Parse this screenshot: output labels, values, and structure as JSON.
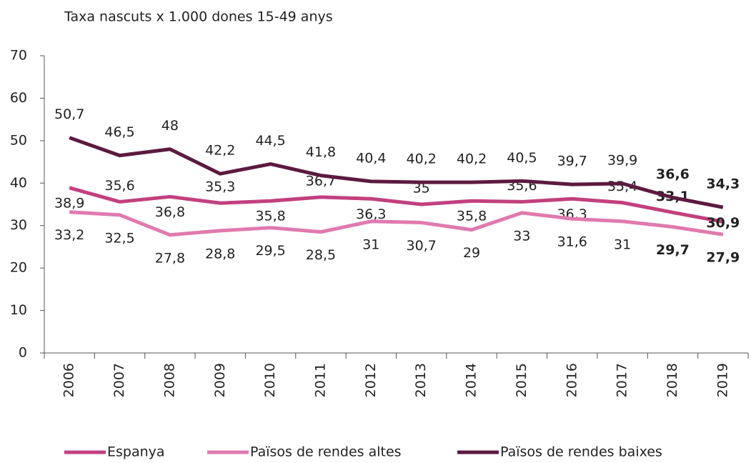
{
  "chart_data": {
    "type": "line",
    "title": "Taxa nascuts x 1.000 dones 15-49 anys",
    "categories": [
      "2006",
      "2007",
      "2008",
      "2009",
      "2010",
      "2011",
      "2012",
      "2013",
      "2014",
      "2015",
      "2016",
      "2017",
      "2018",
      "2019"
    ],
    "series": [
      {
        "name": "Espanya",
        "color": "#c2407e",
        "values": [
          38.9,
          35.6,
          36.8,
          35.3,
          35.8,
          36.7,
          36.3,
          35,
          35.8,
          35.6,
          36.3,
          35.4,
          33.1,
          30.9
        ],
        "value_labels": [
          "38,9",
          "35,6",
          "36,8",
          "35,3",
          "35,8",
          "36,7",
          "36,3",
          "35",
          "35,8",
          "35,6",
          "36,3",
          "35,4",
          "33,1",
          "30,9"
        ]
      },
      {
        "name": "Països de rendes altes",
        "color": "#e07aaf",
        "values": [
          33.2,
          32.5,
          27.8,
          28.8,
          29.5,
          28.5,
          31,
          30.7,
          29,
          33,
          31.6,
          31,
          29.7,
          27.9
        ],
        "value_labels": [
          "33,2",
          "32,5",
          "27,8",
          "28,8",
          "29,5",
          "28,5",
          "31",
          "30,7",
          "29",
          "33",
          "31,6",
          "31",
          "29,7",
          "27,9"
        ]
      },
      {
        "name": "Països de rendes baixes",
        "color": "#5c1a40",
        "values": [
          50.7,
          46.5,
          48,
          42.2,
          44.5,
          41.8,
          40.4,
          40.2,
          40.2,
          40.5,
          39.7,
          39.9,
          36.6,
          34.3
        ],
        "value_labels": [
          "50,7",
          "46,5",
          "48",
          "42,2",
          "44,5",
          "41,8",
          "40,4",
          "40,2",
          "40,2",
          "40,5",
          "39,7",
          "39,9",
          "36,6",
          "34,3"
        ]
      }
    ],
    "ylim": [
      0,
      70
    ],
    "yticks": [
      0,
      10,
      20,
      30,
      40,
      50,
      60,
      70
    ],
    "grid": false,
    "legend": "bottom"
  }
}
